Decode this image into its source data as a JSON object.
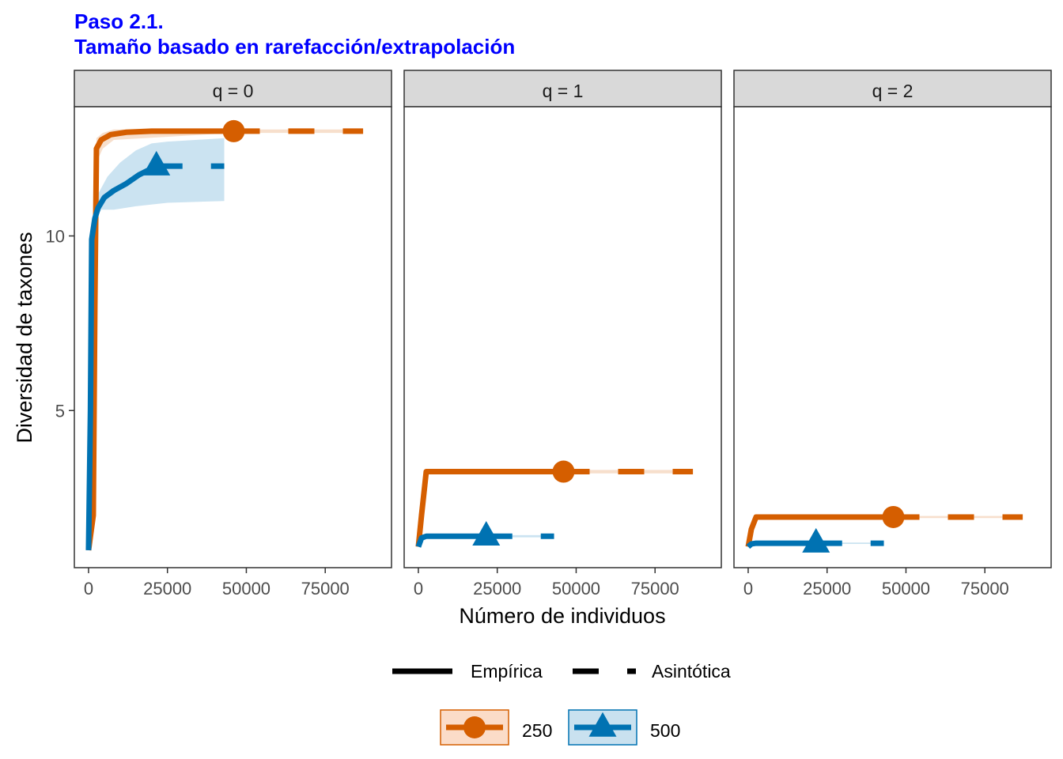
{
  "chart_data": {
    "type": "line",
    "title": "Paso 2.1.",
    "subtitle": "Tamaño basado en rarefacción/extrapolación",
    "xlabel": "Número de individuos",
    "ylabel": "Diversidad de taxones",
    "xlim": [
      -4500,
      96000
    ],
    "ylim": [
      0.5,
      13.7
    ],
    "xticks": [
      0,
      25000,
      50000,
      75000
    ],
    "xtick_labels": [
      "0",
      "25000",
      "50000",
      "75000"
    ],
    "yticks": [
      5,
      10
    ],
    "ytick_labels": [
      "5",
      "10"
    ],
    "grid": false,
    "legend_position": "bottom",
    "linetype_legend": [
      {
        "label": "Empírica",
        "style": "solid"
      },
      {
        "label": "Asintótica",
        "style": "dashed"
      }
    ],
    "series": [
      {
        "name": "250",
        "color": "#D55E00",
        "fill": "#FBDCC8",
        "marker": "circle"
      },
      {
        "name": "500",
        "color": "#0072B2",
        "fill": "#C9E1EF",
        "marker": "triangle"
      }
    ],
    "colors": {
      "title": "#0000FF",
      "strip_bg": "#D9D9D9",
      "strip_border": "#333333",
      "panel_border": "#333333",
      "ribbon_250": "#D55E00",
      "ribbon_500": "#6BAED6"
    },
    "facets": [
      {
        "label": "q = 0",
        "curves": {
          "250": {
            "observed": [
              46000,
              13.0
            ],
            "rarefaction": [
              [
                0,
                1
              ],
              [
                1500,
                2
              ],
              [
                2000,
                8
              ],
              [
                2500,
                12.5
              ],
              [
                4000,
                12.75
              ],
              [
                7000,
                12.9
              ],
              [
                12000,
                12.97
              ],
              [
                20000,
                13
              ],
              [
                46000,
                13
              ]
            ],
            "extrapolation": [
              [
                46000,
                13
              ],
              [
                87000,
                13
              ]
            ],
            "ribbon_upper": [
              [
                0,
                1
              ],
              [
                2500,
                12.8
              ],
              [
                4500,
                12.95
              ],
              [
                8000,
                13.05
              ],
              [
                46000,
                13.05
              ],
              [
                87000,
                13.05
              ]
            ],
            "ribbon_lower": [
              [
                87000,
                12.95
              ],
              [
                46000,
                12.95
              ],
              [
                8000,
                12.75
              ],
              [
                4500,
                12.5
              ],
              [
                2500,
                12.1
              ],
              [
                0,
                1
              ]
            ]
          },
          "500": {
            "observed": [
              21500,
              12.0
            ],
            "rarefaction": [
              [
                0,
                1
              ],
              [
                600,
                5
              ],
              [
                1000,
                9.9
              ],
              [
                2000,
                10.5
              ],
              [
                3000,
                10.8
              ],
              [
                5000,
                11.1
              ],
              [
                8000,
                11.3
              ],
              [
                12000,
                11.5
              ],
              [
                16000,
                11.75
              ],
              [
                21500,
                12
              ]
            ],
            "extrapolation": [
              [
                21500,
                12
              ],
              [
                43000,
                12
              ]
            ],
            "ribbon_upper": [
              [
                1000,
                10
              ],
              [
                3000,
                11.2
              ],
              [
                6000,
                11.7
              ],
              [
                10000,
                12.1
              ],
              [
                15000,
                12.45
              ],
              [
                20000,
                12.65
              ],
              [
                25000,
                12.7
              ],
              [
                43000,
                12.8
              ]
            ],
            "ribbon_lower": [
              [
                43000,
                11
              ],
              [
                25000,
                10.95
              ],
              [
                15000,
                10.85
              ],
              [
                8000,
                10.75
              ],
              [
                4000,
                10.75
              ],
              [
                2000,
                10.4
              ],
              [
                1000,
                9.8
              ]
            ]
          }
        }
      },
      {
        "label": "q = 1",
        "curves": {
          "250": {
            "observed": [
              46000,
              3.25
            ],
            "rarefaction": [
              [
                0,
                1.1
              ],
              [
                1000,
                2.0
              ],
              [
                2500,
                3.25
              ],
              [
                46000,
                3.25
              ]
            ],
            "extrapolation": [
              [
                46000,
                3.25
              ],
              [
                87000,
                3.25
              ]
            ],
            "ribbon_upper": [
              [
                2500,
                3.3
              ],
              [
                87000,
                3.3
              ]
            ],
            "ribbon_lower": [
              [
                87000,
                3.2
              ],
              [
                2500,
                3.2
              ]
            ]
          },
          "500": {
            "observed": [
              21500,
              1.4
            ],
            "rarefaction": [
              [
                0,
                1.1
              ],
              [
                1000,
                1.35
              ],
              [
                2500,
                1.4
              ],
              [
                21500,
                1.4
              ]
            ],
            "extrapolation": [
              [
                21500,
                1.4
              ],
              [
                43000,
                1.4
              ]
            ],
            "ribbon_upper": [
              [
                2500,
                1.43
              ],
              [
                43000,
                1.43
              ]
            ],
            "ribbon_lower": [
              [
                43000,
                1.37
              ],
              [
                2500,
                1.37
              ]
            ]
          }
        }
      },
      {
        "label": "q = 2",
        "curves": {
          "250": {
            "observed": [
              46000,
              1.95
            ],
            "rarefaction": [
              [
                0,
                1.1
              ],
              [
                1000,
                1.6
              ],
              [
                2500,
                1.95
              ],
              [
                46000,
                1.95
              ]
            ],
            "extrapolation": [
              [
                46000,
                1.95
              ],
              [
                87000,
                1.95
              ]
            ],
            "ribbon_upper": [
              [
                2500,
                1.98
              ],
              [
                87000,
                1.98
              ]
            ],
            "ribbon_lower": [
              [
                87000,
                1.92
              ],
              [
                2500,
                1.92
              ]
            ]
          },
          "500": {
            "observed": [
              21500,
              1.2
            ],
            "rarefaction": [
              [
                0,
                1.1
              ],
              [
                1000,
                1.18
              ],
              [
                2500,
                1.2
              ],
              [
                21500,
                1.2
              ]
            ],
            "extrapolation": [
              [
                21500,
                1.2
              ],
              [
                43000,
                1.2
              ]
            ],
            "ribbon_upper": [
              [
                2500,
                1.22
              ],
              [
                43000,
                1.22
              ]
            ],
            "ribbon_lower": [
              [
                43000,
                1.18
              ],
              [
                2500,
                1.18
              ]
            ]
          }
        }
      }
    ]
  }
}
